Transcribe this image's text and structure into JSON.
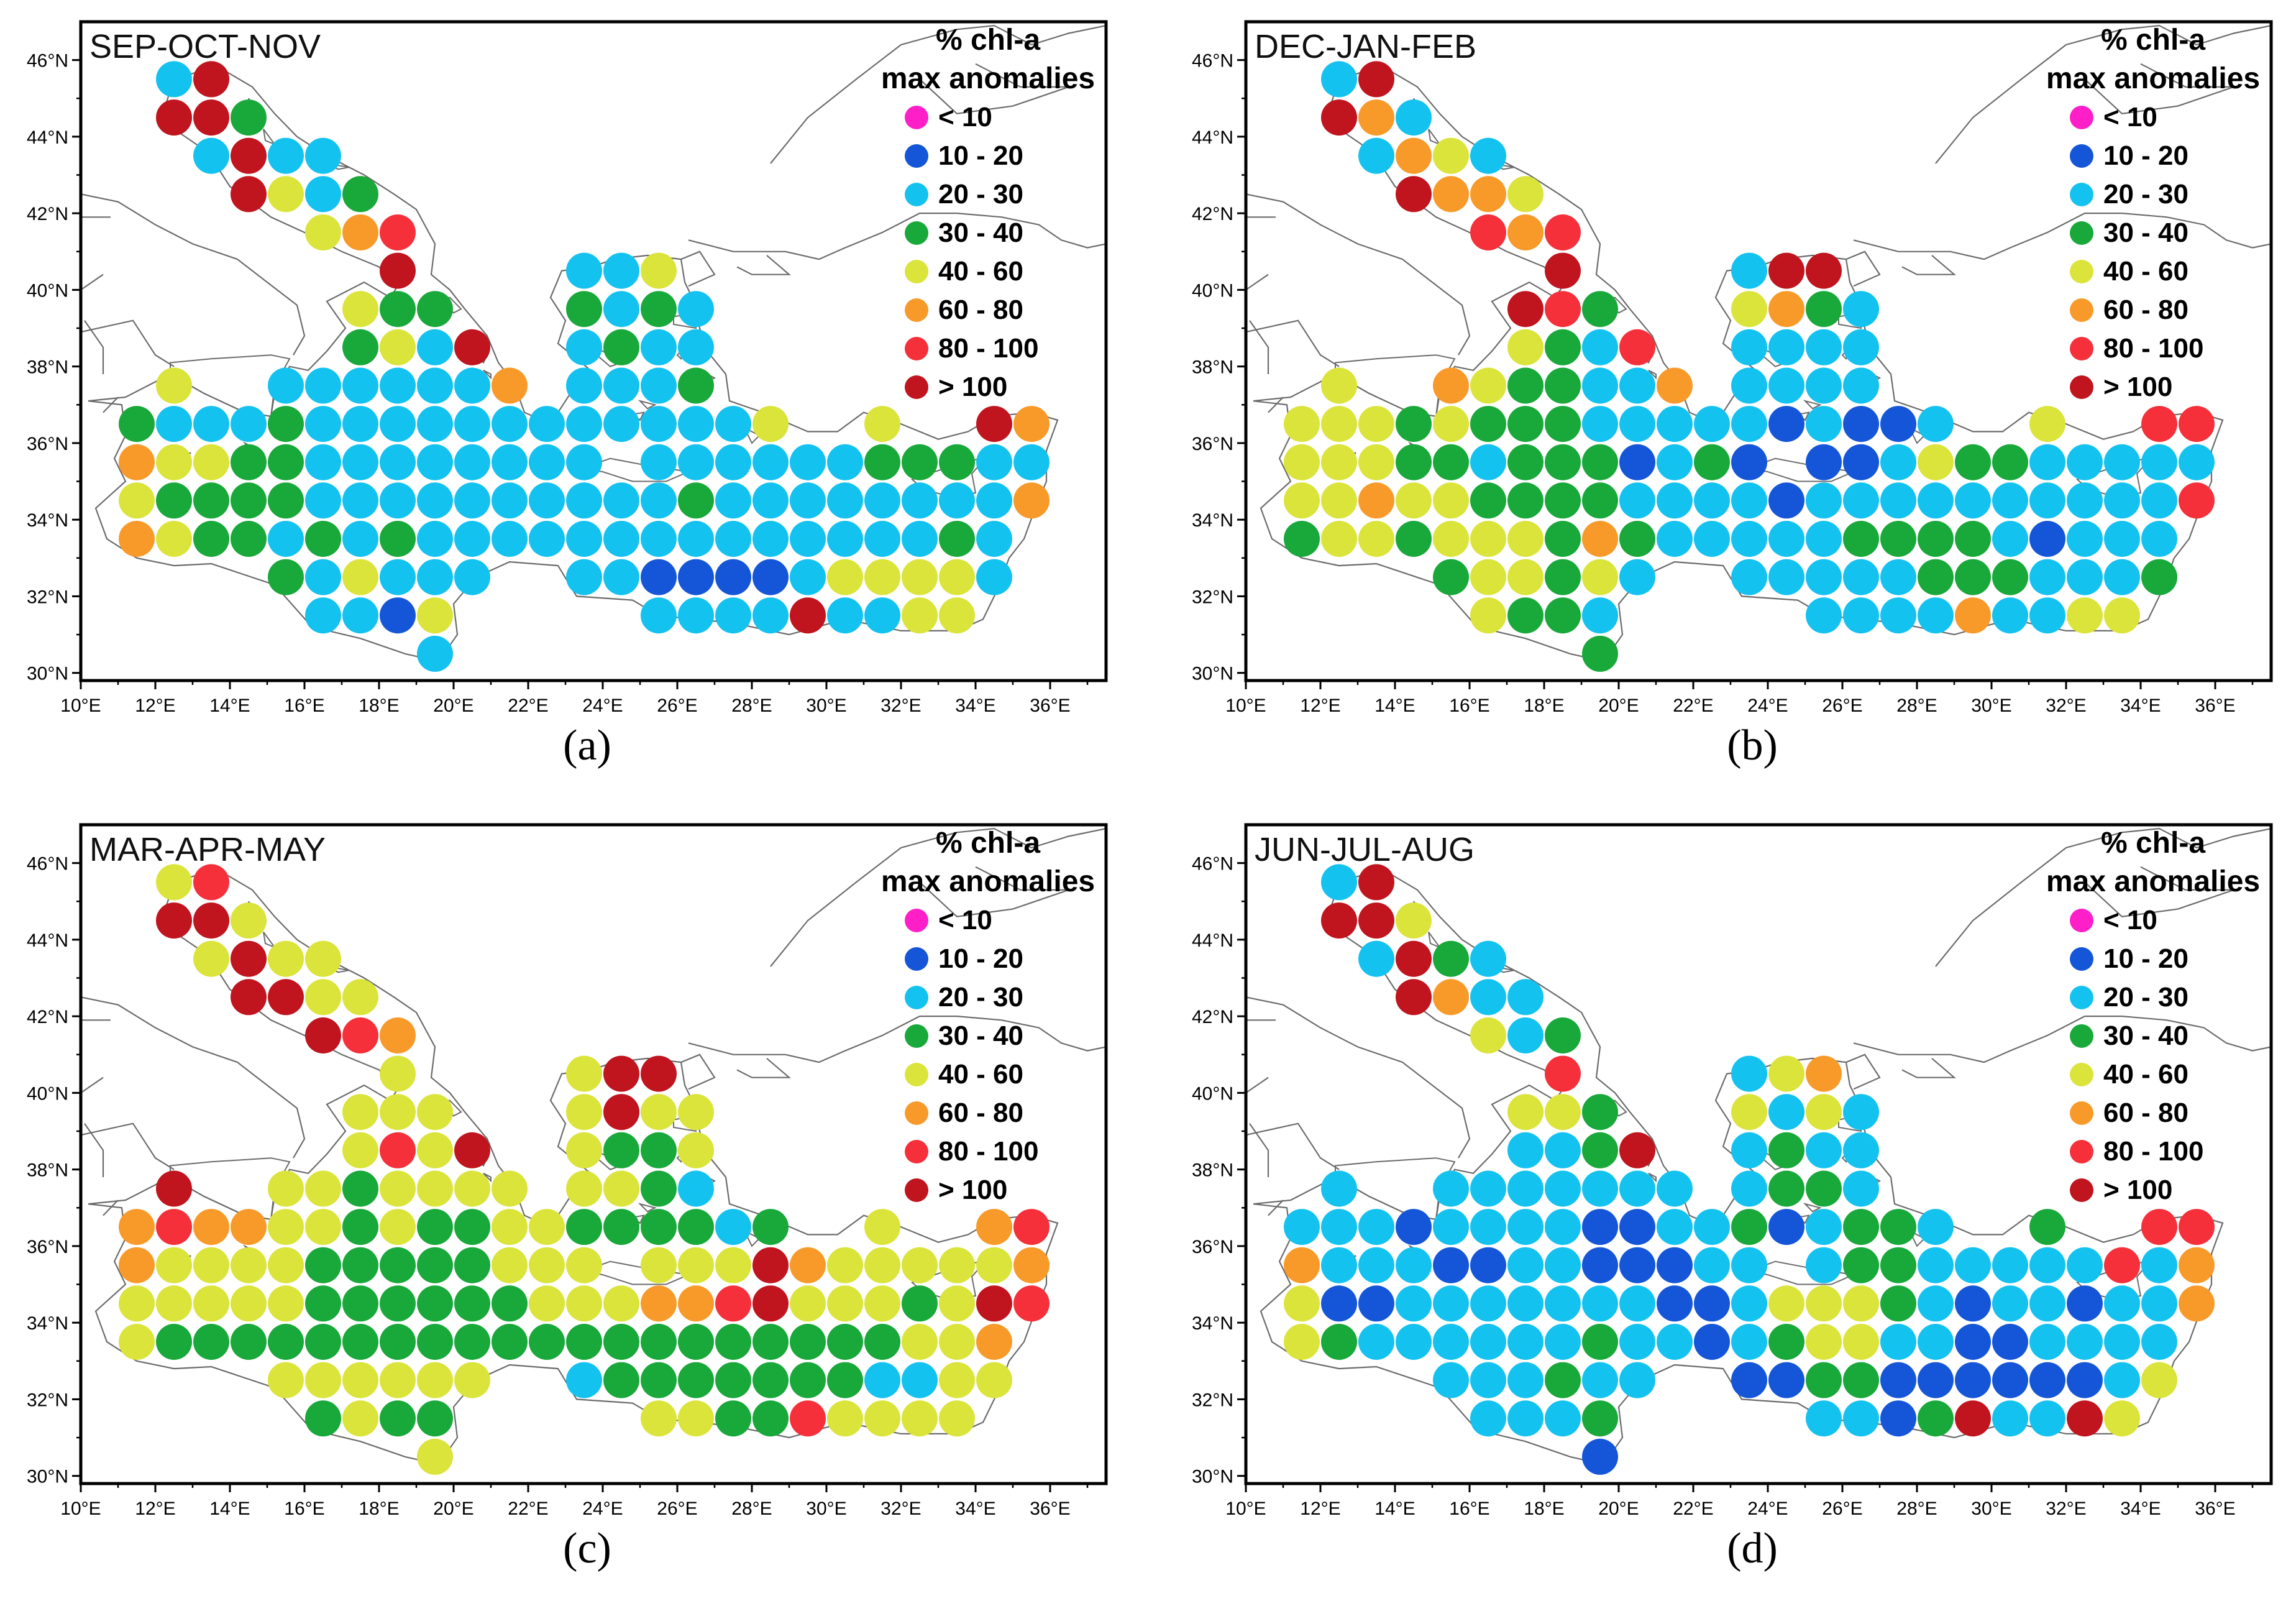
{
  "legend": {
    "title_line1": "% chl-a",
    "title_line2": "max anomalies",
    "classes": [
      {
        "key": "lt10",
        "label": "< 10",
        "color": "#ff1fc8"
      },
      {
        "key": "c10_20",
        "label": "10 - 20",
        "color": "#1556d8"
      },
      {
        "key": "c20_30",
        "label": "20 - 30",
        "color": "#14c2f0"
      },
      {
        "key": "c30_40",
        "label": "30 - 40",
        "color": "#19a83a"
      },
      {
        "key": "c40_60",
        "label": "40 - 60",
        "color": "#dbe43a"
      },
      {
        "key": "c60_80",
        "label": "60 - 80",
        "color": "#f89a2a"
      },
      {
        "key": "c80_100",
        "label": "80 - 100",
        "color": "#f5303a"
      },
      {
        "key": "gt100",
        "label": "> 100",
        "color": "#c0141e"
      }
    ]
  },
  "axes": {
    "lon_labels": [
      "10°E",
      "12°E",
      "14°E",
      "16°E",
      "18°E",
      "20°E",
      "22°E",
      "24°E",
      "26°E",
      "28°E",
      "30°E",
      "32°E",
      "34°E",
      "36°E"
    ],
    "lat_labels": [
      "30°N",
      "32°N",
      "34°N",
      "36°N",
      "38°N",
      "40°N",
      "42°N",
      "44°N",
      "46°N"
    ],
    "lon_range": [
      10,
      37.5
    ],
    "lat_range": [
      29.8,
      47
    ]
  },
  "colors": {
    "coast": "#6b6b6b",
    "frame": "#000000",
    "dot_fallback": "#14c2f0"
  },
  "panels": [
    {
      "id": "a",
      "season": "SEP-OCT-NOV",
      "caption": "(a)",
      "overrides": {
        "gt100": [
          "13.5,45.5",
          "12.5,44.5",
          "13.5,44.5",
          "14.5,43.5",
          "14.5,42.5",
          "18.5,40.5",
          "20.5,38.5",
          "34.5,36.5",
          "29.5,31.5"
        ],
        "c80_100": [
          "18.5,41.5"
        ],
        "c60_80": [
          "17.5,41.5",
          "21.5,37.5",
          "35.5,36.5",
          "11.5,35.5",
          "35.5,34.5",
          "11.5,33.5"
        ],
        "c40_60": [
          "15.5,42.5",
          "16.5,41.5",
          "17.5,39.5",
          "18.5,38.5",
          "12.5,37.5",
          "25.5,40.5",
          "28.5,36.5",
          "31.5,36.5",
          "12.5,35.5",
          "13.5,35.5",
          "11.5,34.5",
          "12.5,33.5",
          "17.5,32.5",
          "19.5,31.5",
          "30.5,32.5",
          "31.5,32.5",
          "32.5,32.5",
          "33.5,32.5",
          "32.5,31.5",
          "33.5,31.5"
        ],
        "c30_40": [
          "14.5,44.5",
          "17.5,42.5",
          "18.5,39.5",
          "19.5,39.5",
          "17.5,38.5",
          "23.5,39.5",
          "25.5,39.5",
          "24.5,38.5",
          "26.5,37.5",
          "11.5,36.5",
          "15.5,36.5",
          "14.5,35.5",
          "15.5,35.5",
          "31.5,35.5",
          "32.5,35.5",
          "33.5,35.5",
          "12.5,34.5",
          "13.5,34.5",
          "14.5,34.5",
          "15.5,34.5",
          "26.5,34.5",
          "13.5,33.5",
          "14.5,33.5",
          "16.5,33.5",
          "18.5,33.5",
          "33.5,33.5",
          "15.5,32.5"
        ],
        "c10_20": [
          "25.5,32.5",
          "26.5,32.5",
          "27.5,32.5",
          "28.5,32.5",
          "18.5,31.5"
        ]
      }
    },
    {
      "id": "b",
      "season": "DEC-JAN-FEB",
      "caption": "(b)",
      "overrides": {
        "gt100": [
          "13.5,45.5",
          "12.5,44.5",
          "14.5,42.5",
          "18.5,40.5",
          "24.5,40.5",
          "25.5,40.5",
          "17.5,39.5"
        ],
        "c80_100": [
          "16.5,41.5",
          "18.5,41.5",
          "18.5,39.5",
          "20.5,38.5",
          "34.5,36.5",
          "35.5,36.5",
          "35.5,34.5"
        ],
        "c60_80": [
          "13.5,44.5",
          "14.5,43.5",
          "15.5,42.5",
          "16.5,42.5",
          "17.5,41.5",
          "24.5,39.5",
          "15.5,37.5",
          "21.5,37.5",
          "13.5,34.5",
          "19.5,33.5",
          "29.5,31.5"
        ],
        "c40_60": [
          "15.5,43.5",
          "17.5,42.5",
          "23.5,39.5",
          "12.5,37.5",
          "16.5,37.5",
          "17.5,38.5",
          "11.5,36.5",
          "12.5,36.5",
          "13.5,36.5",
          "15.5,36.5",
          "31.5,36.5",
          "11.5,35.5",
          "12.5,35.5",
          "13.5,35.5",
          "28.5,35.5",
          "11.5,34.5",
          "12.5,34.5",
          "14.5,34.5",
          "15.5,34.5",
          "12.5,33.5",
          "13.5,33.5",
          "15.5,33.5",
          "16.5,33.5",
          "17.5,33.5",
          "16.5,32.5",
          "17.5,32.5",
          "19.5,32.5",
          "16.5,31.5",
          "32.5,31.5",
          "33.5,31.5"
        ],
        "c30_40": [
          "25.5,39.5",
          "19.5,39.5",
          "18.5,38.5",
          "17.5,37.5",
          "18.5,37.5",
          "14.5,36.5",
          "16.5,36.5",
          "17.5,36.5",
          "18.5,36.5",
          "14.5,35.5",
          "15.5,35.5",
          "17.5,35.5",
          "18.5,35.5",
          "19.5,35.5",
          "22.5,35.5",
          "29.5,35.5",
          "30.5,35.5",
          "16.5,34.5",
          "17.5,34.5",
          "18.5,34.5",
          "19.5,34.5",
          "11.5,33.5",
          "14.5,33.5",
          "18.5,33.5",
          "20.5,33.5",
          "26.5,33.5",
          "27.5,33.5",
          "28.5,33.5",
          "29.5,33.5",
          "15.5,32.5",
          "18.5,32.5",
          "28.5,32.5",
          "29.5,32.5",
          "30.5,32.5",
          "34.5,32.5",
          "17.5,31.5",
          "18.5,31.5",
          "19.5,30.5"
        ],
        "c10_20": [
          "24.5,36.5",
          "26.5,36.5",
          "27.5,36.5",
          "20.5,35.5",
          "23.5,35.5",
          "25.5,35.5",
          "26.5,35.5",
          "24.5,34.5",
          "31.5,33.5"
        ]
      }
    },
    {
      "id": "c",
      "season": "MAR-APR-MAY",
      "caption": "(c)",
      "overrides": {
        "gt100": [
          "12.5,44.5",
          "13.5,44.5",
          "14.5,43.5",
          "14.5,42.5",
          "15.5,42.5",
          "16.5,41.5",
          "24.5,40.5",
          "25.5,40.5",
          "24.5,39.5",
          "20.5,38.5",
          "12.5,37.5",
          "28.5,35.5",
          "28.5,34.5",
          "34.5,34.5"
        ],
        "c80_100": [
          "13.5,45.5",
          "17.5,41.5",
          "18.5,38.5",
          "12.5,36.5",
          "35.5,36.5",
          "27.5,34.5",
          "35.5,34.5",
          "29.5,31.5"
        ],
        "c60_80": [
          "18.5,41.5",
          "11.5,36.5",
          "13.5,36.5",
          "14.5,36.5",
          "34.5,36.5",
          "11.5,35.5",
          "29.5,35.5",
          "35.5,35.5",
          "26.5,34.5",
          "25.5,34.5",
          "34.5,33.5"
        ],
        "c30_40": [
          "24.5,38.5",
          "25.5,38.5",
          "26.5,37.5",
          "25.5,37.5",
          "17.5,37.5",
          "17.5,36.5",
          "19.5,36.5",
          "20.5,36.5",
          "23.5,36.5",
          "24.5,36.5",
          "25.5,36.5",
          "26.5,36.5",
          "28.5,36.5",
          "16.5,35.5",
          "17.5,35.5",
          "18.5,35.5",
          "19.5,35.5",
          "20.5,35.5",
          "16.5,34.5",
          "17.5,34.5",
          "18.5,34.5",
          "19.5,34.5",
          "20.5,34.5",
          "21.5,34.5",
          "32.5,34.5",
          "12.5,33.5",
          "13.5,33.5",
          "14.5,33.5",
          "15.5,33.5",
          "16.5,33.5",
          "17.5,33.5",
          "18.5,33.5",
          "19.5,33.5",
          "20.5,33.5",
          "21.5,33.5",
          "22.5,33.5",
          "23.5,33.5",
          "24.5,33.5",
          "25.5,33.5",
          "26.5,33.5",
          "27.5,33.5",
          "28.5,33.5",
          "29.5,33.5",
          "30.5,33.5",
          "31.5,33.5",
          "24.5,32.5",
          "25.5,32.5",
          "26.5,32.5",
          "27.5,32.5",
          "28.5,32.5",
          "29.5,32.5",
          "30.5,32.5",
          "16.5,31.5",
          "18.5,31.5",
          "19.5,31.5",
          "27.5,31.5",
          "28.5,31.5"
        ],
        "c20_30": [
          "26.5,37.5",
          "27.5,36.5",
          "23.5,32.5",
          "31.5,32.5",
          "32.5,32.5"
        ],
        "default": "c40_60"
      }
    },
    {
      "id": "d",
      "season": "JUN-JUL-AUG",
      "caption": "(d)",
      "overrides": {
        "gt100": [
          "13.5,45.5",
          "12.5,44.5",
          "13.5,44.5",
          "14.5,43.5",
          "14.5,42.5",
          "20.5,38.5",
          "29.5,31.5",
          "32.5,31.5"
        ],
        "c80_100": [
          "18.5,40.5",
          "34.5,36.5",
          "35.5,36.5",
          "33.5,35.5"
        ],
        "c60_80": [
          "15.5,42.5",
          "25.5,40.5",
          "11.5,35.5",
          "35.5,35.5",
          "35.5,34.5"
        ],
        "c40_60": [
          "14.5,44.5",
          "16.5,41.5",
          "24.5,40.5",
          "17.5,39.5",
          "18.5,39.5",
          "23.5,39.5",
          "25.5,39.5",
          "11.5,34.5",
          "24.5,34.5",
          "25.5,34.5",
          "26.5,34.5",
          "11.5,33.5",
          "25.5,33.5",
          "26.5,33.5",
          "34.5,32.5",
          "33.5,31.5"
        ],
        "c30_40": [
          "15.5,43.5",
          "18.5,41.5",
          "19.5,39.5",
          "19.5,38.5",
          "24.5,38.5",
          "24.5,37.5",
          "23.5,36.5",
          "26.5,36.5",
          "27.5,36.5",
          "31.5,36.5",
          "25.5,37.5",
          "26.5,35.5",
          "27.5,35.5",
          "27.5,34.5",
          "12.5,33.5",
          "19.5,33.5",
          "24.5,33.5",
          "18.5,32.5",
          "25.5,32.5",
          "26.5,32.5",
          "19.5,31.5",
          "28.5,31.5"
        ],
        "c10_20": [
          "14.5,36.5",
          "19.5,36.5",
          "20.5,36.5",
          "24.5,36.5",
          "15.5,35.5",
          "16.5,35.5",
          "19.5,35.5",
          "20.5,35.5",
          "21.5,35.5",
          "12.5,34.5",
          "13.5,34.5",
          "21.5,34.5",
          "22.5,34.5",
          "29.5,34.5",
          "32.5,34.5",
          "22.5,33.5",
          "29.5,33.5",
          "30.5,33.5",
          "23.5,32.5",
          "24.5,32.5",
          "27.5,32.5",
          "28.5,32.5",
          "29.5,32.5",
          "30.5,32.5",
          "31.5,32.5",
          "32.5,32.5",
          "27.5,31.5",
          "19.5,30.5"
        ]
      }
    }
  ]
}
